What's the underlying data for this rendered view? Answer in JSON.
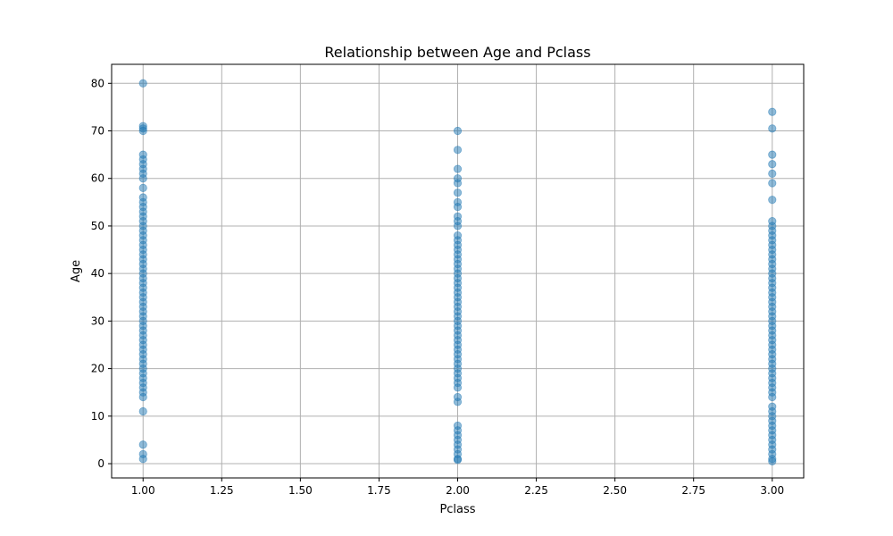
{
  "chart_data": {
    "type": "scatter",
    "title": "Relationship between Age and Pclass",
    "xlabel": "Pclass",
    "ylabel": "Age",
    "xlim": [
      0.9,
      3.1
    ],
    "ylim": [
      -3,
      84
    ],
    "xticks": [
      "1.00",
      "1.25",
      "1.50",
      "1.75",
      "2.00",
      "2.25",
      "2.50",
      "2.75",
      "3.00"
    ],
    "yticks": [
      "0",
      "10",
      "20",
      "30",
      "40",
      "50",
      "60",
      "70",
      "80"
    ],
    "grid": true,
    "point_color": "#1f77b4",
    "point_alpha": 0.5,
    "series": [
      {
        "x": 1,
        "y": [
          80,
          71,
          70.5,
          70,
          65,
          64,
          63,
          62,
          61,
          60,
          58,
          56,
          55,
          54,
          53,
          52,
          51,
          50,
          49,
          48,
          47,
          46,
          45,
          44,
          43,
          42,
          41,
          40,
          39,
          38,
          37,
          36,
          35,
          34,
          33,
          32,
          31,
          30,
          29,
          28,
          27,
          26,
          25,
          24,
          23,
          22,
          21,
          20,
          19,
          18,
          17,
          16,
          15,
          14,
          11,
          4,
          2,
          1
        ]
      },
      {
        "x": 2,
        "y": [
          70,
          66,
          62,
          60,
          59,
          57,
          55,
          54,
          52,
          51,
          50,
          48,
          47,
          46,
          45,
          44,
          43,
          42,
          41,
          40,
          39,
          38,
          37,
          36,
          35,
          34,
          33,
          32,
          31,
          30,
          29,
          28,
          27,
          26,
          25,
          24,
          23,
          22,
          21,
          20,
          19,
          18,
          17,
          16,
          14,
          13,
          8,
          7,
          6,
          5,
          4,
          3,
          2,
          1,
          0.8
        ]
      },
      {
        "x": 3,
        "y": [
          74,
          70.5,
          65,
          63,
          61,
          59,
          55.5,
          51,
          50,
          49,
          48,
          47,
          46,
          45,
          44,
          43,
          42,
          41,
          40,
          39,
          38,
          37,
          36,
          35,
          34,
          33,
          32,
          31,
          30,
          29,
          28,
          27,
          26,
          25,
          24,
          23,
          22,
          21,
          20,
          19,
          18,
          17,
          16,
          15,
          14,
          12,
          11,
          10,
          9,
          8,
          7,
          6,
          5,
          4,
          3,
          2,
          1,
          0.5
        ]
      }
    ]
  }
}
